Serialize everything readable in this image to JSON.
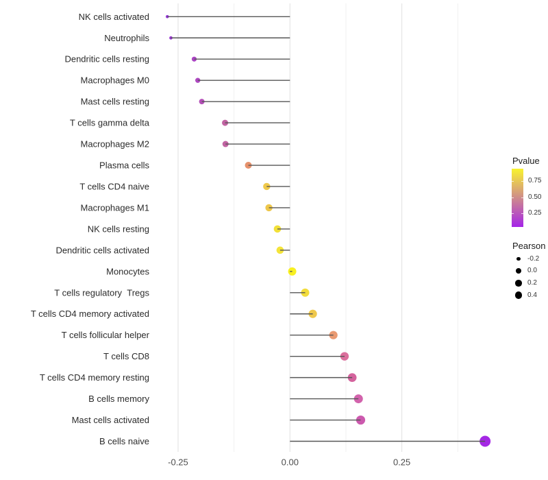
{
  "chart_data": {
    "type": "scatter",
    "variant": "lollipop",
    "title": "",
    "xlabel": "",
    "ylabel": "",
    "x_ticks": [
      {
        "value": -0.25,
        "label": "-0.25"
      },
      {
        "value": 0.0,
        "label": "0.00"
      },
      {
        "value": 0.25,
        "label": "0.25"
      }
    ],
    "x_minor_ticks": [
      -0.125,
      0.125,
      0.375
    ],
    "xlim": [
      -0.3,
      0.47
    ],
    "grid": "vertical-only",
    "legend_position": "right",
    "points": [
      {
        "label": "NK cells activated",
        "pearson": -0.274,
        "pvalue": 0.1,
        "color": "#9232D6",
        "radius": 2.3
      },
      {
        "label": "Neutrophils",
        "pearson": -0.266,
        "pvalue": 0.12,
        "color": "#9935D2",
        "radius": 2.4
      },
      {
        "label": "Dendritic cells resting",
        "pearson": -0.214,
        "pvalue": 0.2,
        "color": "#AB44C4",
        "radius": 3.6
      },
      {
        "label": "Macrophages M0",
        "pearson": -0.206,
        "pvalue": 0.22,
        "color": "#AE47C1",
        "radius": 3.7
      },
      {
        "label": "Mast cells resting",
        "pearson": -0.197,
        "pvalue": 0.26,
        "color": "#B450B8",
        "radius": 4.0
      },
      {
        "label": "T cells gamma delta",
        "pearson": -0.145,
        "pvalue": 0.33,
        "color": "#C163A2",
        "radius": 4.5
      },
      {
        "label": "Macrophages M2",
        "pearson": -0.144,
        "pvalue": 0.33,
        "color": "#C163A2",
        "radius": 4.5
      },
      {
        "label": "Plasma cells",
        "pearson": -0.093,
        "pvalue": 0.57,
        "color": "#E6916C",
        "radius": 5.0
      },
      {
        "label": "T cells CD4 naive",
        "pearson": -0.052,
        "pvalue": 0.7,
        "color": "#EFC94B",
        "radius": 5.2
      },
      {
        "label": "Macrophages M1",
        "pearson": -0.047,
        "pvalue": 0.7,
        "color": "#EEC74B",
        "radius": 5.2
      },
      {
        "label": "NK cells resting",
        "pearson": -0.028,
        "pvalue": 0.8,
        "color": "#F2E038",
        "radius": 5.3
      },
      {
        "label": "Dendritic cells activated",
        "pearson": -0.022,
        "pvalue": 0.82,
        "color": "#F4E43A",
        "radius": 5.3
      },
      {
        "label": "Monocytes",
        "pearson": 0.005,
        "pvalue": 0.95,
        "color": "#F8F021",
        "radius": 6.0
      },
      {
        "label": "T cells regulatory  Tregs",
        "pearson": 0.034,
        "pvalue": 0.85,
        "color": "#F2DC3C",
        "radius": 6.0
      },
      {
        "label": "T cells CD4 memory activated",
        "pearson": 0.051,
        "pvalue": 0.72,
        "color": "#EFC84C",
        "radius": 6.1
      },
      {
        "label": "T cells follicular helper",
        "pearson": 0.097,
        "pvalue": 0.57,
        "color": "#E99A72",
        "radius": 6.1
      },
      {
        "label": "T cells CD8",
        "pearson": 0.122,
        "pvalue": 0.42,
        "color": "#DB6F9C",
        "radius": 6.2
      },
      {
        "label": "T cells CD4 memory resting",
        "pearson": 0.139,
        "pvalue": 0.38,
        "color": "#D4639D",
        "radius": 6.4
      },
      {
        "label": "B cells memory",
        "pearson": 0.153,
        "pvalue": 0.33,
        "color": "#D263AC",
        "radius": 6.5
      },
      {
        "label": "Mast cells activated",
        "pearson": 0.158,
        "pvalue": 0.31,
        "color": "#CC59AE",
        "radius": 6.6
      },
      {
        "label": "B cells naive",
        "pearson": 0.436,
        "pvalue": 0.03,
        "color": "#A428E4",
        "radius": 8.0
      }
    ],
    "color_legend": {
      "title": "Pvalue",
      "tick_labels": [
        "0.75",
        "0.50",
        "0.25"
      ],
      "gradient_top": "#F8F32E",
      "gradient_bottom": "#A524E8"
    },
    "size_legend": {
      "title": "Pearson",
      "dot_color": "#000000",
      "entries": [
        {
          "label": "-0.2",
          "radius": 2.7
        },
        {
          "label": "0.0",
          "radius": 4.0
        },
        {
          "label": "0.2",
          "radius": 4.7
        },
        {
          "label": "0.4",
          "radius": 5.4
        }
      ]
    },
    "colors": {
      "stem": "#565656",
      "grid_major": "#E3E3E3",
      "grid_minor": "#F0F0F0",
      "axis_text": "#4D4D4D",
      "category_text": "#2B2B2B"
    }
  }
}
